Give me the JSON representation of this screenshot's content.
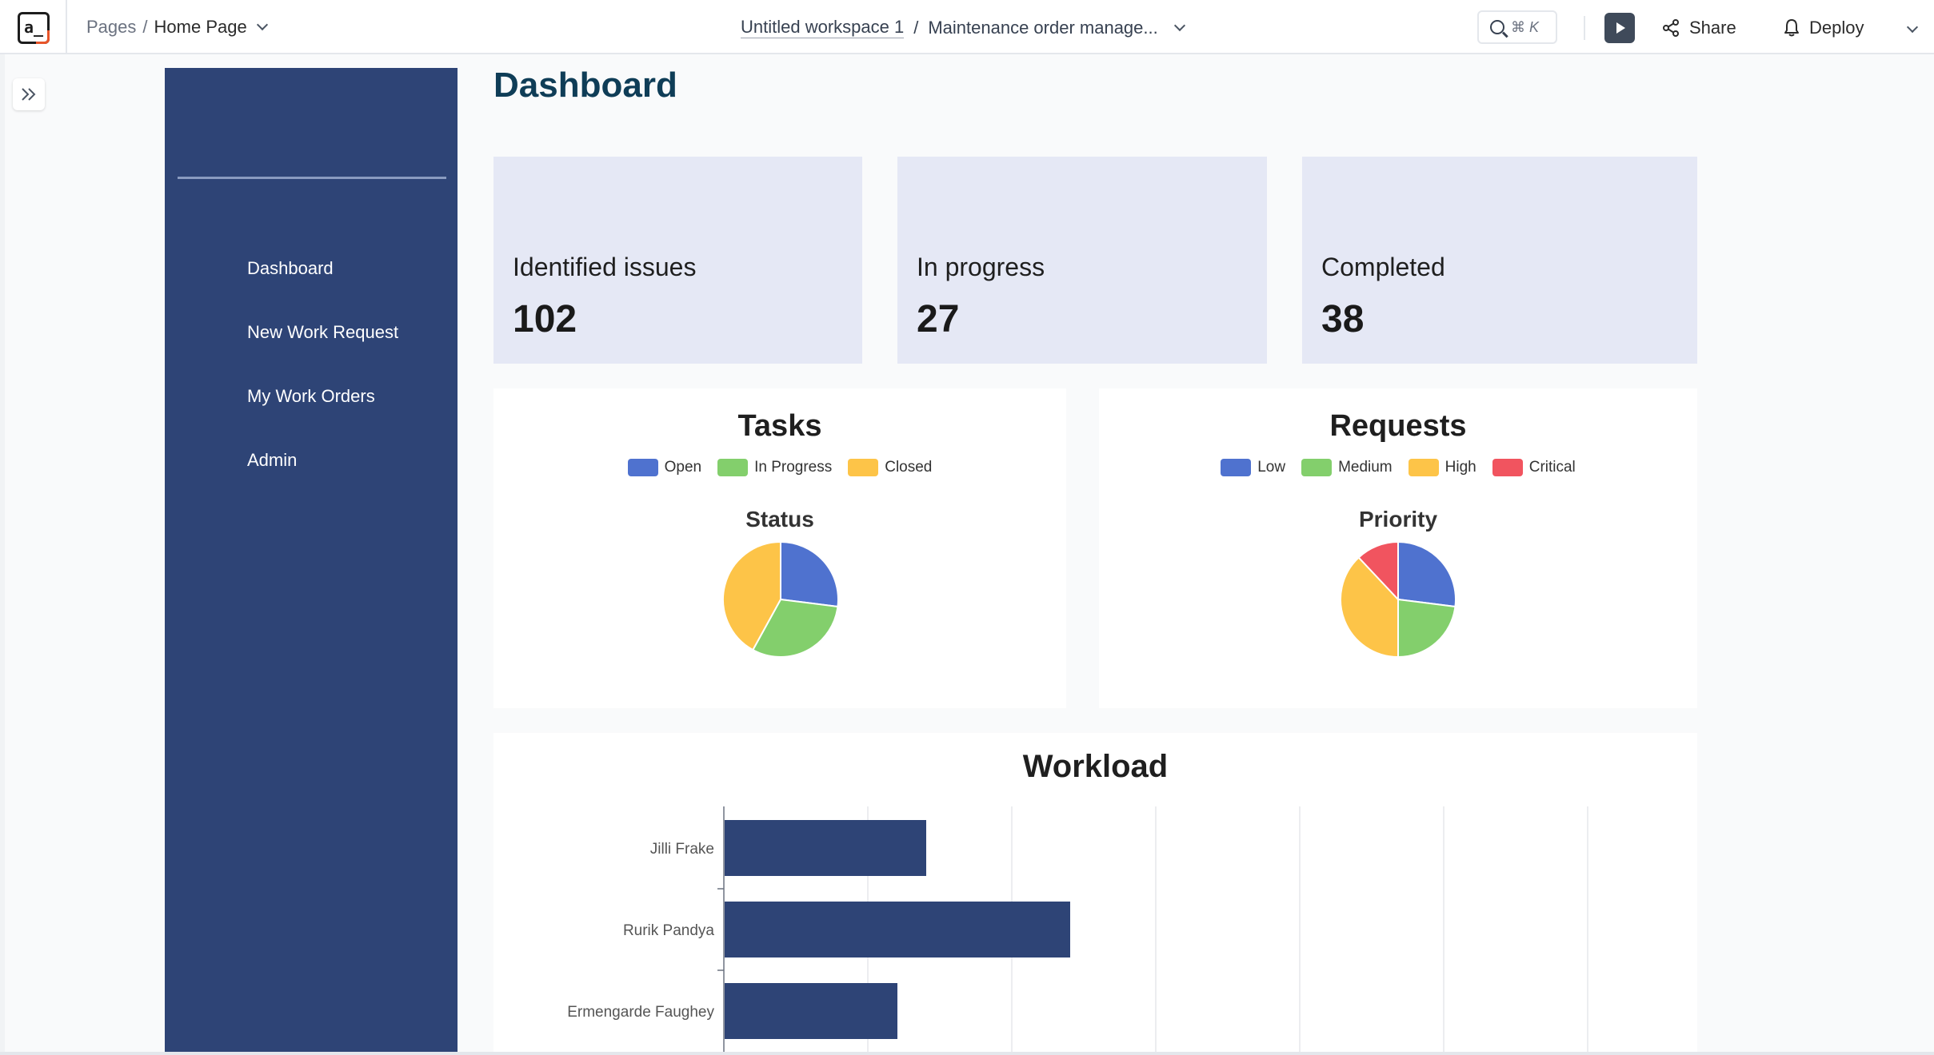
{
  "topbar": {
    "logo_text": "a_",
    "breadcrumb_root": "Pages",
    "breadcrumb_sep": "/",
    "breadcrumb_current": "Home Page",
    "workspace": "Untitled workspace 1",
    "path_sep": "/",
    "app_name": "Maintenance order manage...",
    "search_shortcut": "⌘ K",
    "share_label": "Share",
    "deploy_label": "Deploy"
  },
  "sidebar": {
    "items": [
      {
        "label": "Dashboard"
      },
      {
        "label": "New Work Request"
      },
      {
        "label": "My Work Orders"
      },
      {
        "label": "Admin"
      }
    ]
  },
  "main": {
    "title": "Dashboard",
    "stats": [
      {
        "label": "Identified issues",
        "value": "102"
      },
      {
        "label": "In progress",
        "value": "27"
      },
      {
        "label": "Completed",
        "value": "38"
      }
    ]
  },
  "colors": {
    "blue": "#4f72cf",
    "green": "#83cf6c",
    "yellow": "#fdc448",
    "red": "#f1545f",
    "bar": "#2e4476",
    "sidebar": "#2e4476"
  },
  "chart_data": [
    {
      "type": "pie",
      "panel_title": "Tasks",
      "title": "Status",
      "labels": [
        "Open",
        "In Progress",
        "Closed"
      ],
      "values": [
        27,
        31,
        42
      ],
      "colors": [
        "#4f72cf",
        "#83cf6c",
        "#fdc448"
      ]
    },
    {
      "type": "pie",
      "panel_title": "Requests",
      "title": "Priority",
      "labels": [
        "Low",
        "Medium",
        "High",
        "Critical"
      ],
      "values": [
        27,
        23,
        38,
        12
      ],
      "colors": [
        "#4f72cf",
        "#83cf6c",
        "#fdc448",
        "#f1545f"
      ]
    },
    {
      "type": "bar",
      "orientation": "horizontal",
      "title": "Workload",
      "categories": [
        "Jilli Frake",
        "Rurik Pandya",
        "Ermengarde Faughey"
      ],
      "values": [
        7,
        12,
        6
      ],
      "xlim": [
        0,
        30
      ],
      "grid": true
    }
  ]
}
